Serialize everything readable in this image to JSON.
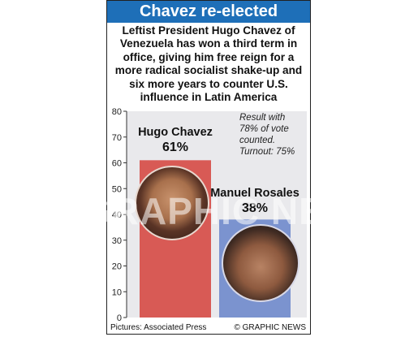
{
  "header": {
    "title": "Chavez re-elected",
    "lede": "Leftist President Hugo Chavez of Venezuela has won a third term in office, giving him free reign for a more radical socialist shake-up and six more years to counter U.S. influence in Latin America"
  },
  "note": {
    "line1": "Result with",
    "line2": "78% of vote",
    "line3": "counted.",
    "line4": "Turnout: 75%"
  },
  "footer": {
    "credit_left": "Pictures: Associated Press",
    "credit_right": "© GRAPHIC NEWS"
  },
  "watermark": "GRAPHIC NEWS",
  "colors": {
    "title_bg": "#1e6fb8",
    "chavez_bar": "#d85a55",
    "rosales_bar": "#7b93cf",
    "panel_bg": "#e9e9ec"
  },
  "chart_data": {
    "type": "bar",
    "categories": [
      "Hugo Chavez",
      "Manuel Rosales"
    ],
    "values": [
      61,
      38
    ],
    "value_labels": [
      "61%",
      "38%"
    ],
    "ylim": [
      0,
      80
    ],
    "yticks": [
      0,
      10,
      20,
      30,
      40,
      50,
      60,
      70,
      80
    ],
    "grid": false,
    "bar_colors": [
      "#d85a55",
      "#7b93cf"
    ]
  }
}
